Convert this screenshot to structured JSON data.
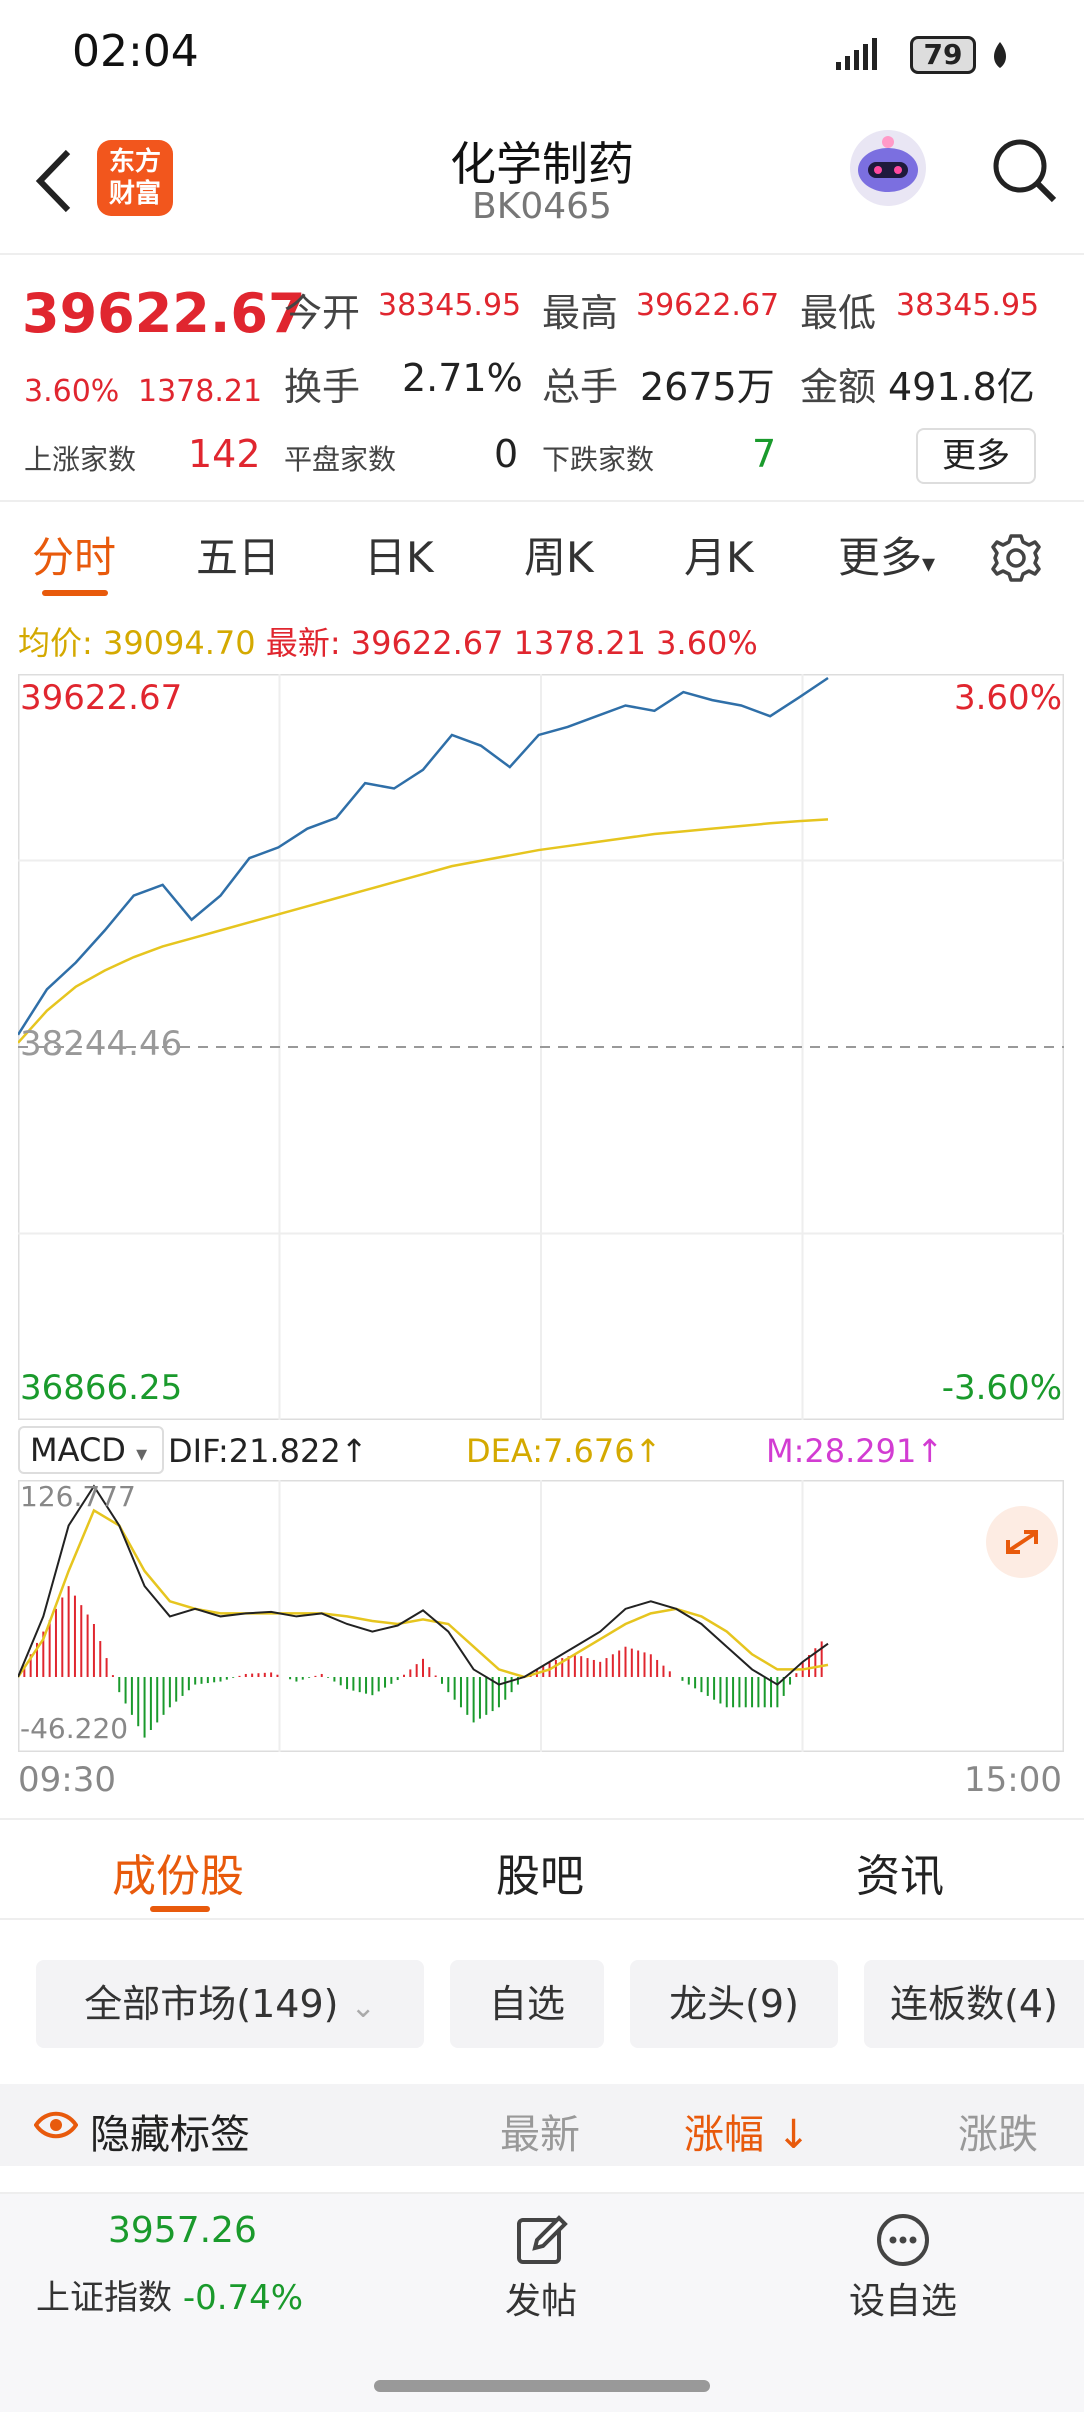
{
  "status_bar": {
    "time": "02:04",
    "battery": "79"
  },
  "header": {
    "title": "化学制药",
    "code": "BK0465",
    "logo_line1": "东方",
    "logo_line2": "财富"
  },
  "quote": {
    "price": "39622.67",
    "change_pct": "3.60%",
    "change": "1378.21",
    "open_label": "今开",
    "open": "38345.95",
    "high_label": "最高",
    "high": "39622.67",
    "low_label": "最低",
    "low": "38345.95",
    "turnover_label": "换手",
    "turnover": "2.71%",
    "volume_label": "总手",
    "volume": "2675万",
    "amount_label": "金额",
    "amount": "491.8亿",
    "up_label": "上涨家数",
    "up": "142",
    "flat_label": "平盘家数",
    "flat": "0",
    "down_label": "下跌家数",
    "down": "7",
    "more_button": "更多"
  },
  "period_tabs": [
    "分时",
    "五日",
    "日K",
    "周K",
    "月K",
    "更多"
  ],
  "chart_info": {
    "avg_label": "均价: 39094.70",
    "latest_label": "最新: 39622.67",
    "latest_change": "1378.21",
    "latest_pct": "3.60%"
  },
  "chart_data": {
    "type": "line",
    "y_top": "39622.67",
    "y_mid": "38244.46",
    "y_bottom": "36866.25",
    "pct_top": "3.60%",
    "pct_bottom": "-3.60%",
    "ylim": [
      36866.25,
      39622.67
    ],
    "x_start": "09:30",
    "x_end": "15:00",
    "price": [
      38290,
      38460,
      38560,
      38680,
      38810,
      38850,
      38720,
      38810,
      38950,
      38990,
      39060,
      39100,
      39230,
      39210,
      39280,
      39410,
      39370,
      39290,
      39410,
      39440,
      39480,
      39520,
      39500,
      39570,
      39540,
      39520,
      39480,
      39550,
      39622.67
    ],
    "avg": [
      38260,
      38380,
      38470,
      38530,
      38580,
      38620,
      38650,
      38680,
      38710,
      38740,
      38770,
      38800,
      38830,
      38860,
      38890,
      38920,
      38940,
      38960,
      38980,
      38995,
      39010,
      39025,
      39040,
      39050,
      39060,
      39070,
      39080,
      39088,
      39094.7
    ],
    "macd": {
      "indicator": "MACD",
      "dif_label": "DIF:21.822↑",
      "dea_label": "DEA:7.676↑",
      "m_label": "M:28.291↑",
      "y_top": "126.777",
      "y_bottom": "-46.220",
      "ylim": [
        -46.22,
        126.777
      ],
      "dif": [
        0,
        40,
        100,
        126,
        100,
        60,
        40,
        45,
        40,
        42,
        43,
        40,
        42,
        35,
        30,
        34,
        44,
        30,
        5,
        -5,
        0,
        10,
        20,
        30,
        45,
        50,
        45,
        35,
        20,
        5,
        -5,
        10,
        22
      ],
      "dea": [
        0,
        25,
        70,
        110,
        100,
        70,
        50,
        45,
        42,
        42,
        42,
        42,
        42,
        40,
        37,
        35,
        38,
        35,
        20,
        5,
        0,
        5,
        15,
        25,
        35,
        42,
        45,
        40,
        30,
        15,
        5,
        5,
        8
      ],
      "hist": [
        0,
        30,
        60,
        35,
        -10,
        -40,
        -20,
        -5,
        -3,
        2,
        3,
        -3,
        2,
        -8,
        -12,
        -2,
        12,
        -10,
        -30,
        -20,
        0,
        10,
        15,
        10,
        20,
        15,
        0,
        -10,
        -20,
        -20,
        -20,
        10,
        28
      ]
    }
  },
  "macd_dropdown": "MACD",
  "section_tabs": [
    "成份股",
    "股吧",
    "资讯"
  ],
  "filters": {
    "market": "全部市场(149)",
    "watch": "自选",
    "leader": "龙头(9)",
    "board": "连板数(4)"
  },
  "list_header": {
    "hide_tags": "隐藏标签",
    "latest": "最新",
    "change_pct": "涨幅 ↓",
    "change": "涨跌"
  },
  "bottom_bar": {
    "index_value": "3957.26",
    "index_name": "上证指数",
    "index_change": "-0.74%",
    "post": "发帖",
    "add_watch": "设自选"
  },
  "colors": {
    "accent": "#e85a0c",
    "up": "#e0262f",
    "down": "#1a9a2c",
    "price_line": "#2f6fa8",
    "avg_line": "#e6c51f",
    "dea": "#e6c51f",
    "m": "#d23cd2"
  }
}
